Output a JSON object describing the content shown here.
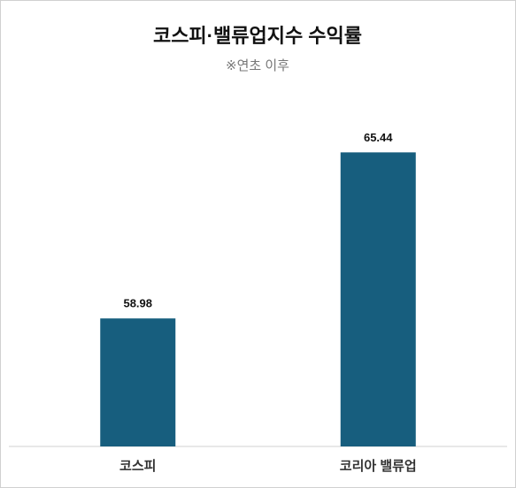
{
  "chart_data": {
    "type": "bar",
    "title": "코스피·밸류업지수 수익률",
    "subtitle": "※연초 이후",
    "categories": [
      "코스피",
      "코리아 밸류업"
    ],
    "values": [
      58.98,
      65.44
    ],
    "color": "#175e7e",
    "ylim": [
      54,
      67
    ]
  }
}
